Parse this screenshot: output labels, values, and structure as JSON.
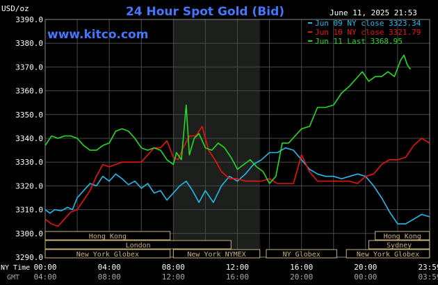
{
  "chart_data": {
    "type": "line",
    "title": "24 Hour Spot Gold (Bid)",
    "watermark": "www.kitco.com",
    "date_stamp": "June 11, 2025 21:53",
    "y_unit_label": "USD/oz",
    "ylim": [
      3290,
      3390
    ],
    "y_ticks": [
      "3290.0",
      "3300.0",
      "3310.0",
      "3320.0",
      "3330.0",
      "3340.0",
      "3350.0",
      "3360.0",
      "3370.0",
      "3380.0",
      "3390.0"
    ],
    "x_row_label_ny": "NY Time",
    "x_row_label_gmt": "GMT",
    "x_ticks_ny": [
      "00:00",
      "04:00",
      "08:00",
      "12:00",
      "16:00",
      "20:00",
      "23:59"
    ],
    "x_ticks_gmt": [
      "04:00",
      "08:00",
      "12:00",
      "16:00",
      "20:00",
      "00:00",
      "03:59"
    ],
    "x_tick_hours": [
      0,
      4,
      8,
      12,
      16,
      20,
      24
    ],
    "grid": true,
    "legend_position": "top-right",
    "shaded_hours": [
      8,
      13.4
    ],
    "series": [
      {
        "name": "Jun 09 NY close 3323.34",
        "color": "#22bbee",
        "points": [
          [
            0,
            3310
          ],
          [
            0.3,
            3308.5
          ],
          [
            0.6,
            3310
          ],
          [
            1,
            3309.5
          ],
          [
            1.4,
            3311
          ],
          [
            1.7,
            3310
          ],
          [
            2,
            3315
          ],
          [
            2.4,
            3318
          ],
          [
            2.8,
            3321
          ],
          [
            3.2,
            3320
          ],
          [
            3.6,
            3324
          ],
          [
            4,
            3322
          ],
          [
            4.4,
            3325
          ],
          [
            4.8,
            3323
          ],
          [
            5.2,
            3320.5
          ],
          [
            5.6,
            3322
          ],
          [
            6,
            3319
          ],
          [
            6.4,
            3321
          ],
          [
            6.8,
            3317
          ],
          [
            7.2,
            3318
          ],
          [
            7.6,
            3314
          ],
          [
            8,
            3317
          ],
          [
            8.4,
            3320
          ],
          [
            8.8,
            3322
          ],
          [
            9.2,
            3318
          ],
          [
            9.6,
            3313
          ],
          [
            10,
            3318
          ],
          [
            10.5,
            3313
          ],
          [
            11,
            3320
          ],
          [
            11.5,
            3324
          ],
          [
            12,
            3322
          ],
          [
            12.5,
            3325
          ],
          [
            13,
            3329
          ],
          [
            13.5,
            3331
          ],
          [
            14,
            3334
          ],
          [
            14.5,
            3334
          ],
          [
            15,
            3336
          ],
          [
            15.5,
            3335
          ],
          [
            16,
            3331
          ],
          [
            16.5,
            3327
          ],
          [
            17,
            3325
          ],
          [
            17.5,
            3324
          ],
          [
            18,
            3324
          ],
          [
            18.5,
            3323
          ],
          [
            19,
            3324
          ],
          [
            19.5,
            3325
          ],
          [
            20,
            3324
          ],
          [
            20.5,
            3320
          ],
          [
            21,
            3315
          ],
          [
            21.5,
            3309
          ],
          [
            22,
            3304
          ],
          [
            22.5,
            3304
          ],
          [
            23,
            3306
          ],
          [
            23.5,
            3308
          ],
          [
            23.99,
            3307
          ]
        ]
      },
      {
        "name": "Jun 10 NY close 3321.79",
        "color": "#ee1111",
        "points": [
          [
            0,
            3306
          ],
          [
            0.4,
            3304
          ],
          [
            0.8,
            3303
          ],
          [
            1.2,
            3306
          ],
          [
            1.6,
            3309
          ],
          [
            2,
            3310
          ],
          [
            2.4,
            3314
          ],
          [
            2.8,
            3318
          ],
          [
            3.2,
            3324
          ],
          [
            3.6,
            3329
          ],
          [
            4,
            3328
          ],
          [
            4.4,
            3329
          ],
          [
            4.8,
            3330
          ],
          [
            5.2,
            3330
          ],
          [
            5.6,
            3330
          ],
          [
            6,
            3330
          ],
          [
            6.4,
            3333
          ],
          [
            6.8,
            3336
          ],
          [
            7.2,
            3336
          ],
          [
            7.6,
            3339
          ],
          [
            8,
            3332
          ],
          [
            8.3,
            3331
          ],
          [
            8.6,
            3336
          ],
          [
            9,
            3341
          ],
          [
            9.4,
            3341
          ],
          [
            9.8,
            3345
          ],
          [
            10.2,
            3335
          ],
          [
            10.6,
            3331
          ],
          [
            11,
            3326
          ],
          [
            11.5,
            3323
          ],
          [
            12,
            3323
          ],
          [
            12.5,
            3322
          ],
          [
            13,
            3322
          ],
          [
            13.5,
            3322
          ],
          [
            14,
            3323
          ],
          [
            14.5,
            3321
          ],
          [
            15,
            3321
          ],
          [
            15.5,
            3321
          ],
          [
            16,
            3333
          ],
          [
            16.5,
            3326
          ],
          [
            17,
            3322
          ],
          [
            17.5,
            3322
          ],
          [
            18,
            3322
          ],
          [
            18.5,
            3322
          ],
          [
            19,
            3322
          ],
          [
            19.5,
            3321
          ],
          [
            20,
            3324
          ],
          [
            20.5,
            3325
          ],
          [
            21,
            3329
          ],
          [
            21.5,
            3331
          ],
          [
            22,
            3331
          ],
          [
            22.5,
            3332
          ],
          [
            23,
            3337
          ],
          [
            23.5,
            3340
          ],
          [
            23.99,
            3338
          ]
        ]
      },
      {
        "name": "Jun 11 Last 3368.95",
        "color": "#22dd22",
        "points": [
          [
            0,
            3337
          ],
          [
            0.4,
            3341
          ],
          [
            0.8,
            3340
          ],
          [
            1.2,
            3341
          ],
          [
            1.6,
            3341
          ],
          [
            2,
            3340
          ],
          [
            2.4,
            3337
          ],
          [
            2.8,
            3335
          ],
          [
            3.2,
            3335
          ],
          [
            3.6,
            3337
          ],
          [
            4,
            3338
          ],
          [
            4.4,
            3343
          ],
          [
            4.8,
            3344
          ],
          [
            5.2,
            3343
          ],
          [
            5.6,
            3340
          ],
          [
            6,
            3336
          ],
          [
            6.4,
            3335
          ],
          [
            6.8,
            3336
          ],
          [
            7.2,
            3335
          ],
          [
            7.6,
            3331
          ],
          [
            8,
            3329
          ],
          [
            8.2,
            3334
          ],
          [
            8.5,
            3331
          ],
          [
            8.8,
            3354
          ],
          [
            9,
            3333
          ],
          [
            9.3,
            3340
          ],
          [
            9.6,
            3342
          ],
          [
            10,
            3336
          ],
          [
            10.4,
            3335
          ],
          [
            10.8,
            3338
          ],
          [
            11.2,
            3336
          ],
          [
            11.6,
            3332
          ],
          [
            12,
            3327
          ],
          [
            12.4,
            3329
          ],
          [
            12.8,
            3331
          ],
          [
            13.2,
            3328
          ],
          [
            13.6,
            3326
          ],
          [
            14,
            3321
          ],
          [
            14.4,
            3324
          ],
          [
            14.8,
            3338
          ],
          [
            15.2,
            3338
          ],
          [
            15.6,
            3341
          ],
          [
            16,
            3344
          ],
          [
            16.5,
            3345
          ],
          [
            17,
            3353
          ],
          [
            17.5,
            3353
          ],
          [
            18,
            3354
          ],
          [
            18.5,
            3359
          ],
          [
            19,
            3362
          ],
          [
            19.4,
            3365
          ],
          [
            19.8,
            3368
          ],
          [
            20.2,
            3364
          ],
          [
            20.6,
            3366
          ],
          [
            21,
            3366
          ],
          [
            21.4,
            3368
          ],
          [
            21.8,
            3366
          ],
          [
            22.2,
            3373
          ],
          [
            22.4,
            3375
          ],
          [
            22.6,
            3371
          ],
          [
            22.8,
            3369
          ]
        ]
      }
    ],
    "sessions": [
      {
        "label": "Hong Kong",
        "start_hour": 0,
        "end_hour": 7.8
      },
      {
        "label": "London",
        "start_hour": 0,
        "end_hour": 11.6
      },
      {
        "label": "New York Globex",
        "start_hour": 0,
        "end_hour": 7.8
      },
      {
        "label": "New York NYMEX",
        "start_hour": 8,
        "end_hour": 13.4
      },
      {
        "label": "NY Globex",
        "start_hour": 13.8,
        "end_hour": 18.2
      },
      {
        "label": "Hong Kong",
        "start_hour": 20.6,
        "end_hour": 23.99
      },
      {
        "label": "Sydney",
        "start_hour": 20.2,
        "end_hour": 23.99
      },
      {
        "label": "New York Globex",
        "start_hour": 18.8,
        "end_hour": 23.99
      }
    ]
  }
}
